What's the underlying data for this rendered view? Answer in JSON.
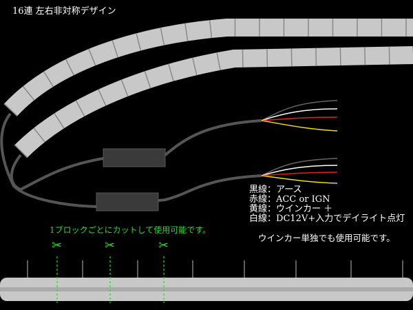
{
  "title": "16連 左右非対称デザイン",
  "legend": [
    {
      "label": "黒線",
      "sep": "：",
      "value": "アース"
    },
    {
      "label": "赤線",
      "sep": "：",
      "value": "ACC or IGN"
    },
    {
      "label": "黄線",
      "sep": "：",
      "value": "ウインカー ＋"
    },
    {
      "label": "白線",
      "sep": "：",
      "value": "DC12V+入力でデイライト点灯"
    }
  ],
  "note": "ウインカー単独でも使用可能です。",
  "cut_note": "1ブロックごとにカットして使用可能です。",
  "scissors_icon": "✂",
  "colors": {
    "cut_accent": "#22dd22",
    "strip": "#c8c8c8",
    "cable": "#555555",
    "wire_red": "#e02020",
    "wire_yellow": "#f0e000",
    "wire_white": "#ffffff",
    "wire_black": "#666666"
  }
}
